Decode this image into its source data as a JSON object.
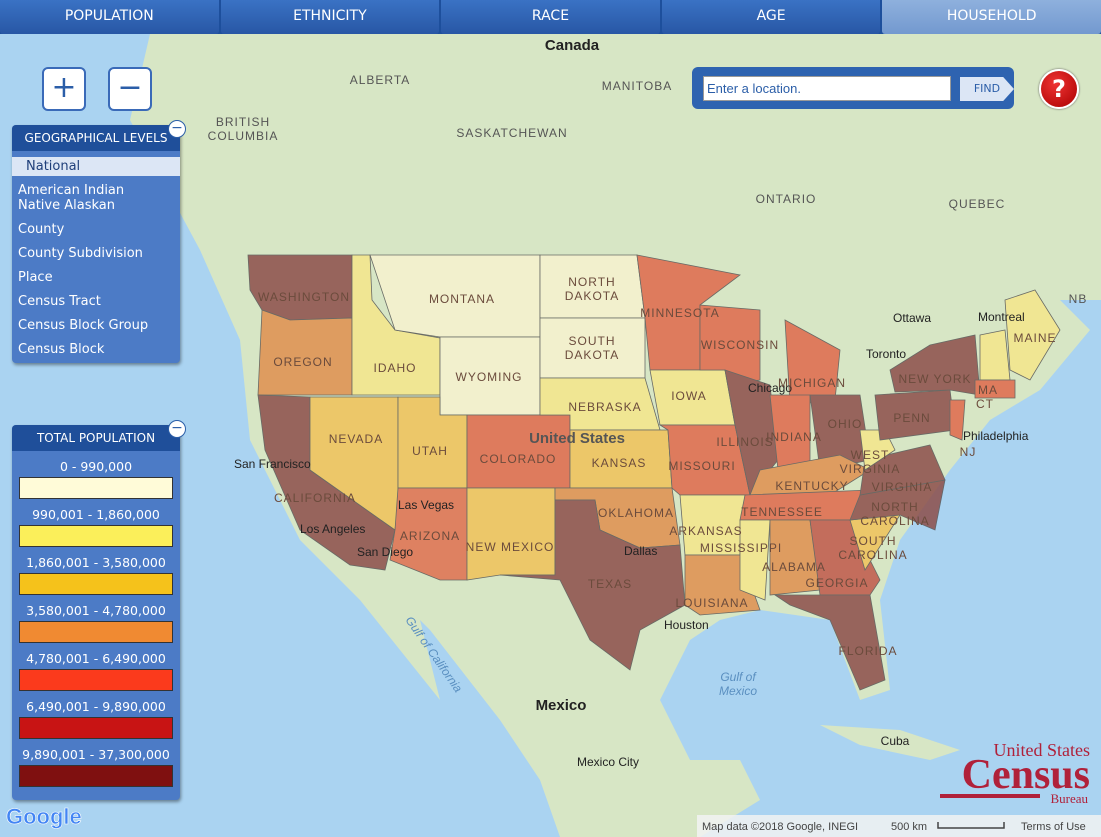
{
  "tabs": [
    "POPULATION",
    "ETHNICITY",
    "RACE",
    "AGE",
    "HOUSEHOLD"
  ],
  "zoom": {
    "in": "+",
    "out": "−"
  },
  "search": {
    "placeholder": "Enter a location.",
    "button": "FIND"
  },
  "help": "?",
  "geo_levels": {
    "title": "GEOGRAPHICAL LEVELS",
    "items": [
      "National",
      "American Indian\nNative Alaskan",
      "County",
      "County Subdivision",
      "Place",
      "Census Tract",
      "Census Block Group",
      "Census Block"
    ]
  },
  "legend": {
    "title": "TOTAL POPULATION",
    "ranges": [
      {
        "label": "0 - 990,000",
        "color": "#fffbd8"
      },
      {
        "label": "990,001 - 1,860,000",
        "color": "#fbef5a"
      },
      {
        "label": "1,860,001 - 3,580,000",
        "color": "#f5c21b"
      },
      {
        "label": "3,580,001 - 4,780,000",
        "color": "#f08a32"
      },
      {
        "label": "4,780,001 - 6,490,000",
        "color": "#fb3a1c"
      },
      {
        "label": "6,490,001 - 9,890,000",
        "color": "#c81414"
      },
      {
        "label": "9,890,001 - 37,300,000",
        "color": "#7f1010"
      }
    ]
  },
  "map_labels": [
    "Canada",
    "ALBERTA",
    "BRITISH\nCOLUMBIA",
    "MANITOBA",
    "SASKATCHEWAN",
    "ONTARIO",
    "QUEBEC",
    "NB",
    "Ottawa",
    "Montreal",
    "Toronto",
    "Chicago",
    "Philadelphia",
    "San Francisco",
    "Los Angeles",
    "San Diego",
    "Las Vegas",
    "United States",
    "Dallas",
    "Houston",
    "Gulf of California",
    "Gulf of\nMexico",
    "Mexico",
    "Mexico City",
    "Cuba"
  ],
  "state_labels": [
    "WASHINGTON",
    "OREGON",
    "CALIFORNIA",
    "NEVADA",
    "IDAHO",
    "MONTANA",
    "WYOMING",
    "UTAH",
    "COLORADO",
    "ARIZONA",
    "NEW MEXICO",
    "NORTH\nDAKOTA",
    "SOUTH\nDAKOTA",
    "NEBRASKA",
    "KANSAS",
    "OKLAHOMA",
    "TEXAS",
    "MINNESOTA",
    "IOWA",
    "MISSOURI",
    "ARKANSAS",
    "LOUISIANA",
    "WISCONSIN",
    "ILLINOIS",
    "MICHIGAN",
    "INDIANA",
    "OHIO",
    "KENTUCKY",
    "TENNESSEE",
    "MISSISSIPPI",
    "ALABAMA",
    "GEORGIA",
    "FLORIDA",
    "SOUTH\nCAROLINA",
    "NORTH\nCAROLINA",
    "VIRGINIA",
    "WEST\nVIRGINIA",
    "PENN",
    "NEW YORK",
    "MAINE",
    "MA",
    "CT",
    "NJ"
  ],
  "logo": {
    "line1": "United States",
    "line2": "Census",
    "line3": "Bureau"
  },
  "google": "Google",
  "footer": {
    "attribution": "Map data ©2018 Google, INEGI",
    "scale": "500 km",
    "terms": "Terms of Use"
  }
}
